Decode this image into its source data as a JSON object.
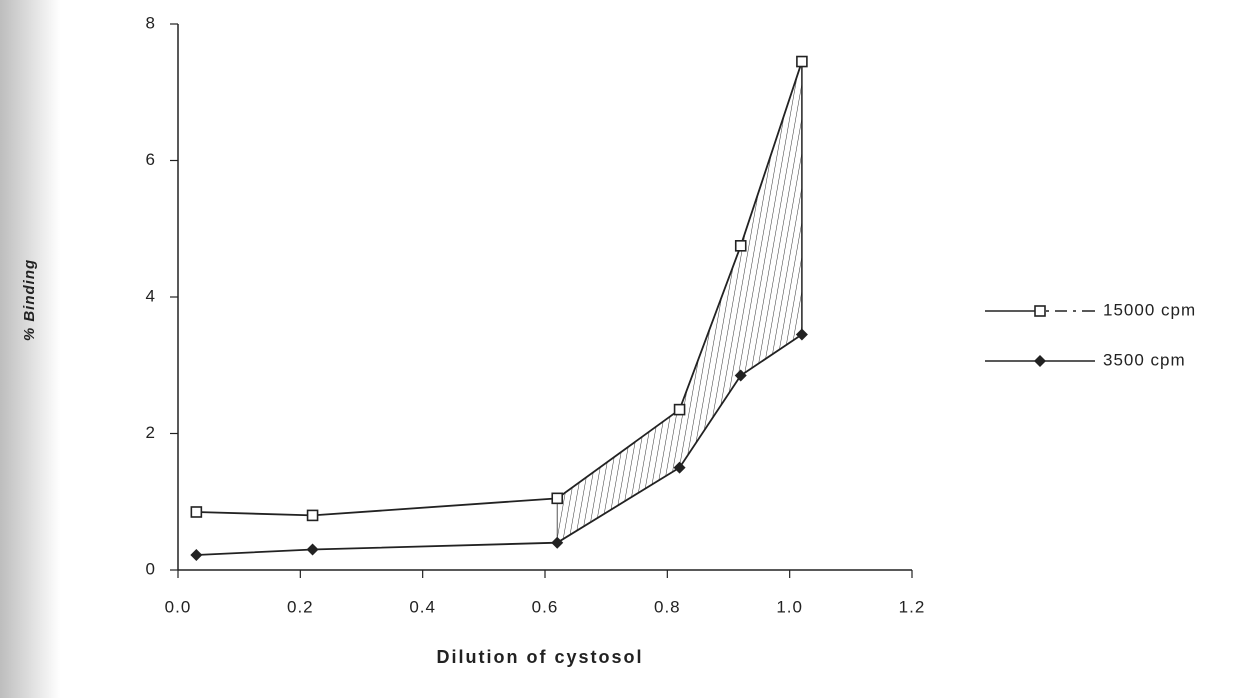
{
  "chart_data": {
    "type": "line",
    "xlabel": "Dilution of cystosol",
    "ylabel": "% Binding",
    "x": [
      0.03,
      0.22,
      0.62,
      0.82,
      0.92,
      1.02
    ],
    "series": [
      {
        "name": "15000 cpm",
        "color": "#222222",
        "marker": "square-open",
        "values": [
          0.85,
          0.8,
          1.05,
          2.35,
          4.75,
          7.45
        ]
      },
      {
        "name": "3500 cpm",
        "color": "#222222",
        "marker": "diamond-filled",
        "values": [
          0.22,
          0.3,
          0.4,
          1.5,
          2.85,
          3.45
        ]
      }
    ],
    "xlim": [
      0,
      1.2
    ],
    "xticks": [
      {
        "value": 0,
        "label": "0.0"
      },
      0.2,
      0.4,
      0.6,
      0.8,
      {
        "value": 1,
        "label": "1.0"
      },
      1.2
    ],
    "ylim": [
      0,
      8
    ],
    "yticks": [
      0,
      2,
      4,
      6,
      8
    ],
    "legend": "right",
    "grid": false
  }
}
